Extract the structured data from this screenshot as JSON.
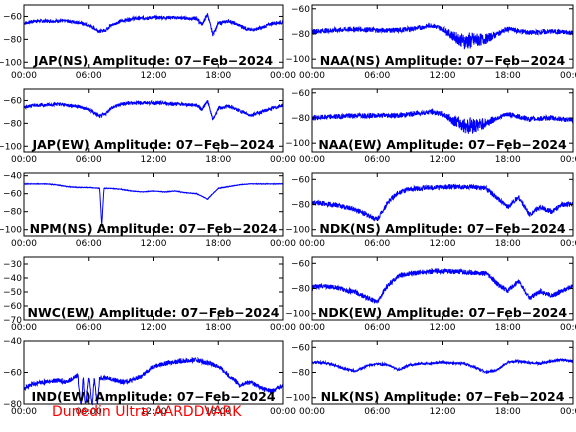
{
  "footer": {
    "label": "Dunedin Ultra AARDDVARK"
  },
  "colors": {
    "trace": "#0000ff",
    "axes": "#000000",
    "footer": "#ff0000",
    "background": "#ffffff"
  },
  "chart_data": [
    {
      "type": "line",
      "station": "JAP",
      "title": "JAP(NS) Amplitude: 07−Feb−2024",
      "x_range": [
        "00:00",
        "24:00"
      ],
      "x_ticks": [
        "00:00",
        "06:00",
        "12:00",
        "18:00",
        "00:00"
      ],
      "ylim": [
        -105,
        -50
      ],
      "y_ticks": [
        -60,
        -80,
        -100
      ],
      "y_tick_labels": [
        "−60",
        "−80",
        "−100"
      ],
      "series": [
        {
          "x_hours": [
            0,
            1,
            2,
            3,
            4,
            5,
            6,
            7,
            7.5,
            8,
            9,
            10,
            12,
            14,
            16,
            16.5,
            17,
            17.5,
            18,
            19,
            20,
            21,
            22,
            23,
            24
          ],
          "values": [
            -66,
            -64,
            -64,
            -64,
            -64,
            -65,
            -68,
            -73,
            -72,
            -68,
            -64,
            -62,
            -61,
            -61,
            -62,
            -67,
            -58,
            -76,
            -66,
            -64,
            -68,
            -72,
            -70,
            -66,
            -65
          ],
          "spread": 3
        }
      ]
    },
    {
      "type": "line",
      "station": "NAA",
      "title": "NAA(NS) Amplitude: 07−Feb−2024",
      "x_range": [
        "00:00",
        "24:00"
      ],
      "x_ticks": [
        "00:00",
        "06:00",
        "12:00",
        "18:00",
        "00:00"
      ],
      "ylim": [
        -107,
        -57
      ],
      "y_ticks": [
        -60,
        -80,
        -100
      ],
      "y_tick_labels": [
        "−60",
        "−80",
        "−100"
      ],
      "series": [
        {
          "x_hours": [
            0,
            2,
            4,
            6,
            8,
            10,
            11,
            12,
            13,
            14,
            15,
            16,
            17,
            18,
            20,
            22,
            24
          ],
          "values": [
            -78,
            -77,
            -76,
            -77,
            -77,
            -75,
            -73,
            -76,
            -82,
            -86,
            -85,
            -84,
            -80,
            -76,
            -79,
            -78,
            -79
          ],
          "spread": 4,
          "noisy_between": [
            12,
            17
          ],
          "noise": 10
        }
      ]
    },
    {
      "type": "line",
      "station": "JAP",
      "title": "JAP(EW) Amplitude: 07−Feb−2024",
      "x_range": [
        "00:00",
        "24:00"
      ],
      "x_ticks": [
        "00:00",
        "06:00",
        "12:00",
        "18:00",
        "00:00"
      ],
      "ylim": [
        -105,
        -50
      ],
      "y_ticks": [
        -60,
        -80,
        -100
      ],
      "y_tick_labels": [
        "−60",
        "−80",
        "−100"
      ],
      "series": [
        {
          "x_hours": [
            0,
            1,
            2,
            3,
            4,
            5,
            6,
            7,
            7.5,
            8,
            9,
            10,
            12,
            14,
            16,
            16.5,
            17,
            17.5,
            18,
            19,
            20,
            21,
            22,
            23,
            24
          ],
          "values": [
            -66,
            -64,
            -64,
            -63,
            -64,
            -65,
            -68,
            -74,
            -72,
            -67,
            -63,
            -62,
            -62,
            -63,
            -64,
            -68,
            -60,
            -77,
            -67,
            -65,
            -69,
            -73,
            -70,
            -67,
            -64
          ],
          "spread": 3
        }
      ]
    },
    {
      "type": "line",
      "station": "NAA",
      "title": "NAA(EW) Amplitude: 07−Feb−2024",
      "x_range": [
        "00:00",
        "24:00"
      ],
      "x_ticks": [
        "00:00",
        "06:00",
        "12:00",
        "18:00",
        "00:00"
      ],
      "ylim": [
        -107,
        -57
      ],
      "y_ticks": [
        -60,
        -80,
        -100
      ],
      "y_tick_labels": [
        "−60",
        "−80",
        "−100"
      ],
      "series": [
        {
          "x_hours": [
            0,
            2,
            4,
            6,
            8,
            10,
            11,
            12,
            13,
            14,
            15,
            16,
            17,
            18,
            20,
            22,
            24
          ],
          "values": [
            -80,
            -79,
            -78,
            -78,
            -78,
            -76,
            -75,
            -77,
            -82,
            -86,
            -86,
            -84,
            -80,
            -77,
            -81,
            -80,
            -82
          ],
          "spread": 4,
          "noisy_between": [
            12,
            17
          ],
          "noise": 10
        }
      ]
    },
    {
      "type": "line",
      "station": "NPM",
      "title": "NPM(NS) Amplitude: 07−Feb−2024",
      "x_range": [
        "00:00",
        "24:00"
      ],
      "x_ticks": [
        "00:00",
        "06:00",
        "12:00",
        "18:00",
        "00:00"
      ],
      "ylim": [
        -107,
        -37
      ],
      "y_ticks": [
        -40,
        -60,
        -80,
        -100
      ],
      "y_tick_labels": [
        "−40",
        "−60",
        "−80",
        "−100"
      ],
      "series": [
        {
          "x_hours": [
            0,
            1,
            2,
            3,
            4,
            5,
            6,
            7,
            7.2,
            7.4,
            8,
            9,
            10,
            11,
            12,
            13,
            14,
            15,
            16,
            17,
            18,
            19,
            20,
            21,
            22,
            23,
            24
          ],
          "values": [
            -49,
            -49,
            -49,
            -50,
            -52,
            -53,
            -53,
            -54,
            -95,
            -54,
            -54,
            -55,
            -57,
            -58,
            -57,
            -58,
            -57,
            -59,
            -60,
            -66,
            -54,
            -52,
            -50,
            -49,
            -49,
            -49,
            -49
          ],
          "spread": 0.5
        }
      ]
    },
    {
      "type": "line",
      "station": "NDK",
      "title": "NDK(NS) Amplitude: 07−Feb−2024",
      "x_range": [
        "00:00",
        "24:00"
      ],
      "x_ticks": [
        "00:00",
        "06:00",
        "12:00",
        "18:00",
        "00:00"
      ],
      "ylim": [
        -105,
        -55
      ],
      "y_ticks": [
        -60,
        -80,
        -100
      ],
      "y_tick_labels": [
        "−60",
        "−80",
        "−100"
      ],
      "series": [
        {
          "x_hours": [
            0,
            1,
            2,
            3,
            4,
            5,
            6,
            7,
            8,
            9,
            10,
            12,
            14,
            16,
            17,
            18,
            19,
            20,
            21,
            22,
            23,
            24
          ],
          "values": [
            -79,
            -79,
            -80,
            -82,
            -84,
            -88,
            -92,
            -78,
            -70,
            -68,
            -67,
            -66,
            -66,
            -67,
            -75,
            -82,
            -74,
            -88,
            -82,
            -86,
            -80,
            -80
          ],
          "spread": 4
        }
      ]
    },
    {
      "type": "line",
      "station": "NWC",
      "title": "NWC(EW) Amplitude: 07−Feb−2024",
      "x_range": [
        "00:00",
        "24:00"
      ],
      "x_ticks": [
        "00:00",
        "06:00",
        "12:00",
        "18:00",
        "00:00"
      ],
      "ylim": [
        -70,
        -25
      ],
      "y_ticks": [
        -30,
        -40,
        -50,
        -60,
        -70
      ],
      "y_tick_labels": [
        "−30",
        "−40",
        "−50",
        "−60",
        "−70"
      ],
      "series": []
    },
    {
      "type": "line",
      "station": "NDK",
      "title": "NDK(EW) Amplitude: 07−Feb−2024",
      "x_range": [
        "00:00",
        "24:00"
      ],
      "x_ticks": [
        "00:00",
        "06:00",
        "12:00",
        "18:00",
        "00:00"
      ],
      "ylim": [
        -105,
        -55
      ],
      "y_ticks": [
        -60,
        -80,
        -100
      ],
      "y_tick_labels": [
        "−60",
        "−80",
        "−100"
      ],
      "series": [
        {
          "x_hours": [
            0,
            1,
            2,
            3,
            4,
            5,
            6,
            7,
            8,
            9,
            10,
            12,
            14,
            16,
            17,
            18,
            19,
            20,
            21,
            22,
            23,
            24
          ],
          "values": [
            -79,
            -78,
            -79,
            -81,
            -83,
            -87,
            -91,
            -77,
            -70,
            -68,
            -67,
            -66,
            -67,
            -68,
            -76,
            -82,
            -74,
            -88,
            -82,
            -86,
            -82,
            -78
          ],
          "spread": 4
        }
      ]
    },
    {
      "type": "line",
      "station": "IND",
      "title": "IND(EW) Amplitude: 07−Feb−2024",
      "x_range": [
        "00:00",
        "24:00"
      ],
      "x_ticks": [
        "00:00",
        "06:00",
        "12:00",
        "18:00",
        "00:00"
      ],
      "ylim": [
        -80,
        -40
      ],
      "y_ticks": [
        -40,
        -60,
        -80
      ],
      "y_tick_labels": [
        "−40",
        "−60",
        "−80"
      ],
      "series": [
        {
          "x_hours": [
            0,
            1,
            2,
            3,
            4,
            5,
            5.3,
            5.5,
            5.7,
            6,
            6.3,
            6.5,
            6.8,
            7,
            8,
            9,
            10,
            11,
            12,
            14,
            16,
            18,
            19,
            20,
            21,
            22,
            23,
            24
          ],
          "values": [
            -70,
            -67,
            -66,
            -65,
            -66,
            -62,
            -82,
            -63,
            -82,
            -62,
            -82,
            -63,
            -82,
            -63,
            -64,
            -66,
            -65,
            -62,
            -56,
            -53,
            -52,
            -56,
            -62,
            -68,
            -66,
            -70,
            -72,
            -68
          ],
          "spread": 3
        }
      ]
    },
    {
      "type": "line",
      "station": "NLK",
      "title": "NLK(NS) Amplitude: 07−Feb−2024",
      "x_range": [
        "00:00",
        "24:00"
      ],
      "x_ticks": [
        "00:00",
        "06:00",
        "12:00",
        "18:00",
        "00:00"
      ],
      "ylim": [
        -105,
        -55
      ],
      "y_ticks": [
        -60,
        -80,
        -100
      ],
      "y_tick_labels": [
        "−60",
        "−80",
        "−100"
      ],
      "series": [
        {
          "x_hours": [
            0,
            1,
            2,
            3,
            4,
            5,
            6,
            7,
            8,
            9,
            10,
            12,
            14,
            15,
            16,
            17,
            18,
            19,
            20,
            21,
            22,
            23,
            24
          ],
          "values": [
            -72,
            -72,
            -74,
            -77,
            -79,
            -75,
            -73,
            -74,
            -78,
            -74,
            -73,
            -72,
            -73,
            -76,
            -80,
            -78,
            -72,
            -71,
            -72,
            -73,
            -71,
            -70,
            -71
          ],
          "spread": 2
        }
      ]
    }
  ]
}
